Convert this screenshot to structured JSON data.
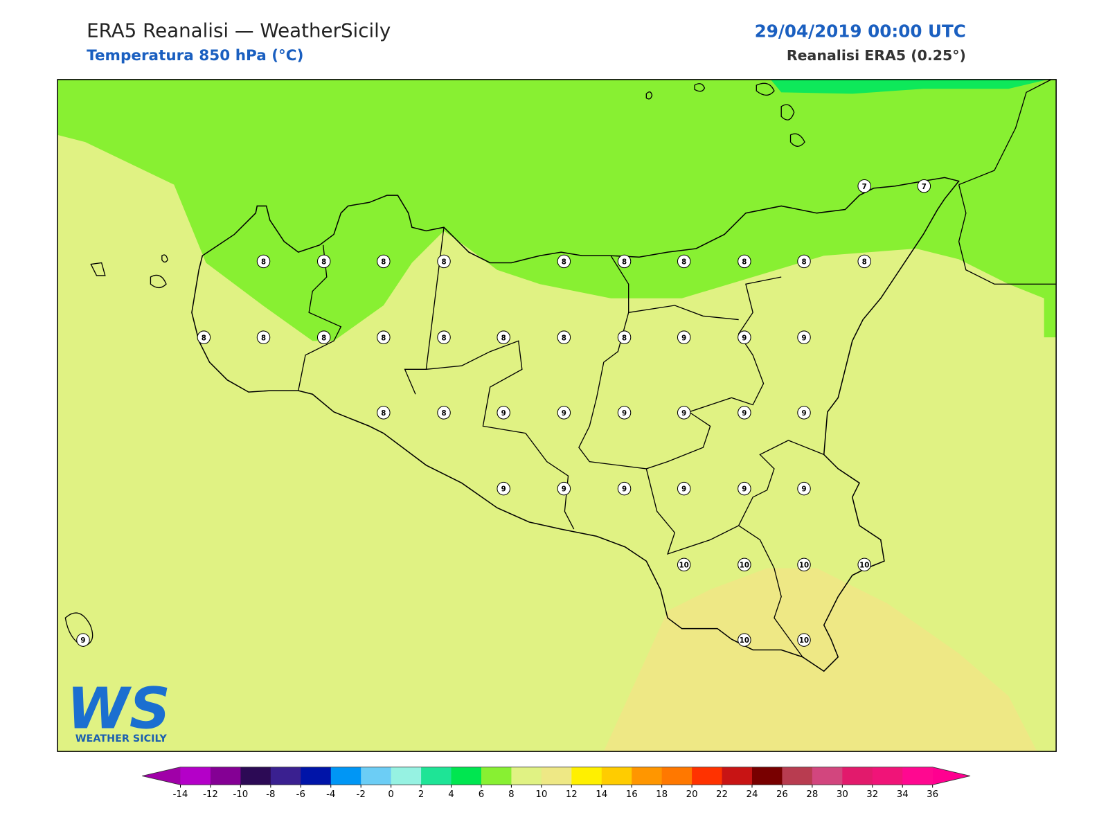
{
  "header": {
    "title": "ERA5 Reanalisi — WeatherSicily",
    "subtitle": "Temperatura 850 hPa (°C)",
    "date": "29/04/2019 00:00 UTC",
    "source": "Reanalisi ERA5 (0.25°)"
  },
  "grid_labels": [
    7,
    7,
    8,
    8,
    8,
    8,
    8,
    8,
    8,
    8,
    8,
    8,
    8,
    8,
    8,
    8,
    8,
    8,
    8,
    8,
    9,
    9,
    9,
    8,
    8,
    9,
    9,
    9,
    9,
    9,
    9,
    9,
    9,
    9,
    9,
    9,
    9,
    10,
    10,
    10,
    10,
    9,
    10,
    10
  ],
  "colorbar": {
    "ticks": [
      -14,
      -12,
      -10,
      -8,
      -6,
      -4,
      -2,
      0,
      2,
      4,
      6,
      8,
      10,
      12,
      14,
      16,
      18,
      20,
      22,
      24,
      26,
      28,
      30,
      32,
      34,
      36
    ],
    "colors": [
      "#b400c8",
      "#840094",
      "#2c0a55",
      "#3a2090",
      "#0014a8",
      "#0096f5",
      "#6ccdf5",
      "#96f2e2",
      "#1ee496",
      "#00e650",
      "#88f032",
      "#e0f283",
      "#eee885",
      "#fff000",
      "#ffcc00",
      "#ff9600",
      "#ff7800",
      "#ff3200",
      "#c81414",
      "#780000",
      "#b83c50",
      "#d2467e",
      "#e21a6c",
      "#f01478",
      "#ff0890"
    ],
    "under_color": "#a000a8",
    "over_color": "#ff0090"
  },
  "logo": {
    "mark": "WS",
    "text": "WEATHER SICILY"
  }
}
